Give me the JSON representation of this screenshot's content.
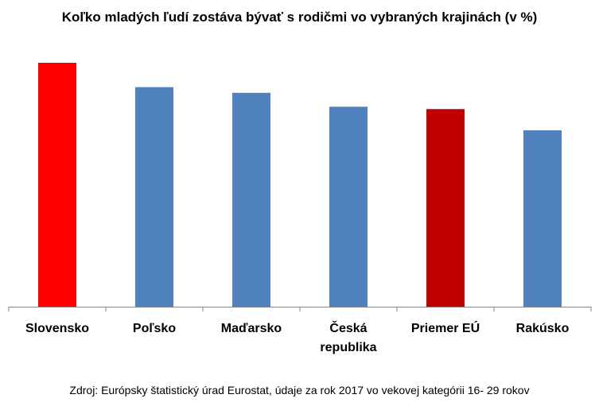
{
  "title": "Koľko mladých ľudí zostáva bývať s rodičmi vo vybraných krajinách (v %)",
  "source": "Zdroj: Európsky štatistický úrad Eurostat, údaje za rok 2017 vo vekovej kategórii 16- 29 rokov",
  "chart_data": {
    "type": "bar",
    "title": "Koľko mladých ľudí zostáva bývať s rodičmi vo vybraných krajinách (v %)",
    "categories": [
      [
        "Slovensko"
      ],
      [
        "Poľsko"
      ],
      [
        "Maďarsko"
      ],
      [
        "Česká",
        "republika"
      ],
      [
        "Priemer EÚ"
      ],
      [
        "Rakúsko"
      ]
    ],
    "values": [
      100,
      90,
      87.7,
      82,
      81,
      72.3
    ],
    "colors": [
      "#ff0000",
      "#4f81bd",
      "#4f81bd",
      "#4f81bd",
      "#c00000",
      "#4f81bd"
    ],
    "axis_color": "#868686",
    "ylim": [
      0,
      100
    ],
    "grid": false,
    "legend": "none"
  }
}
